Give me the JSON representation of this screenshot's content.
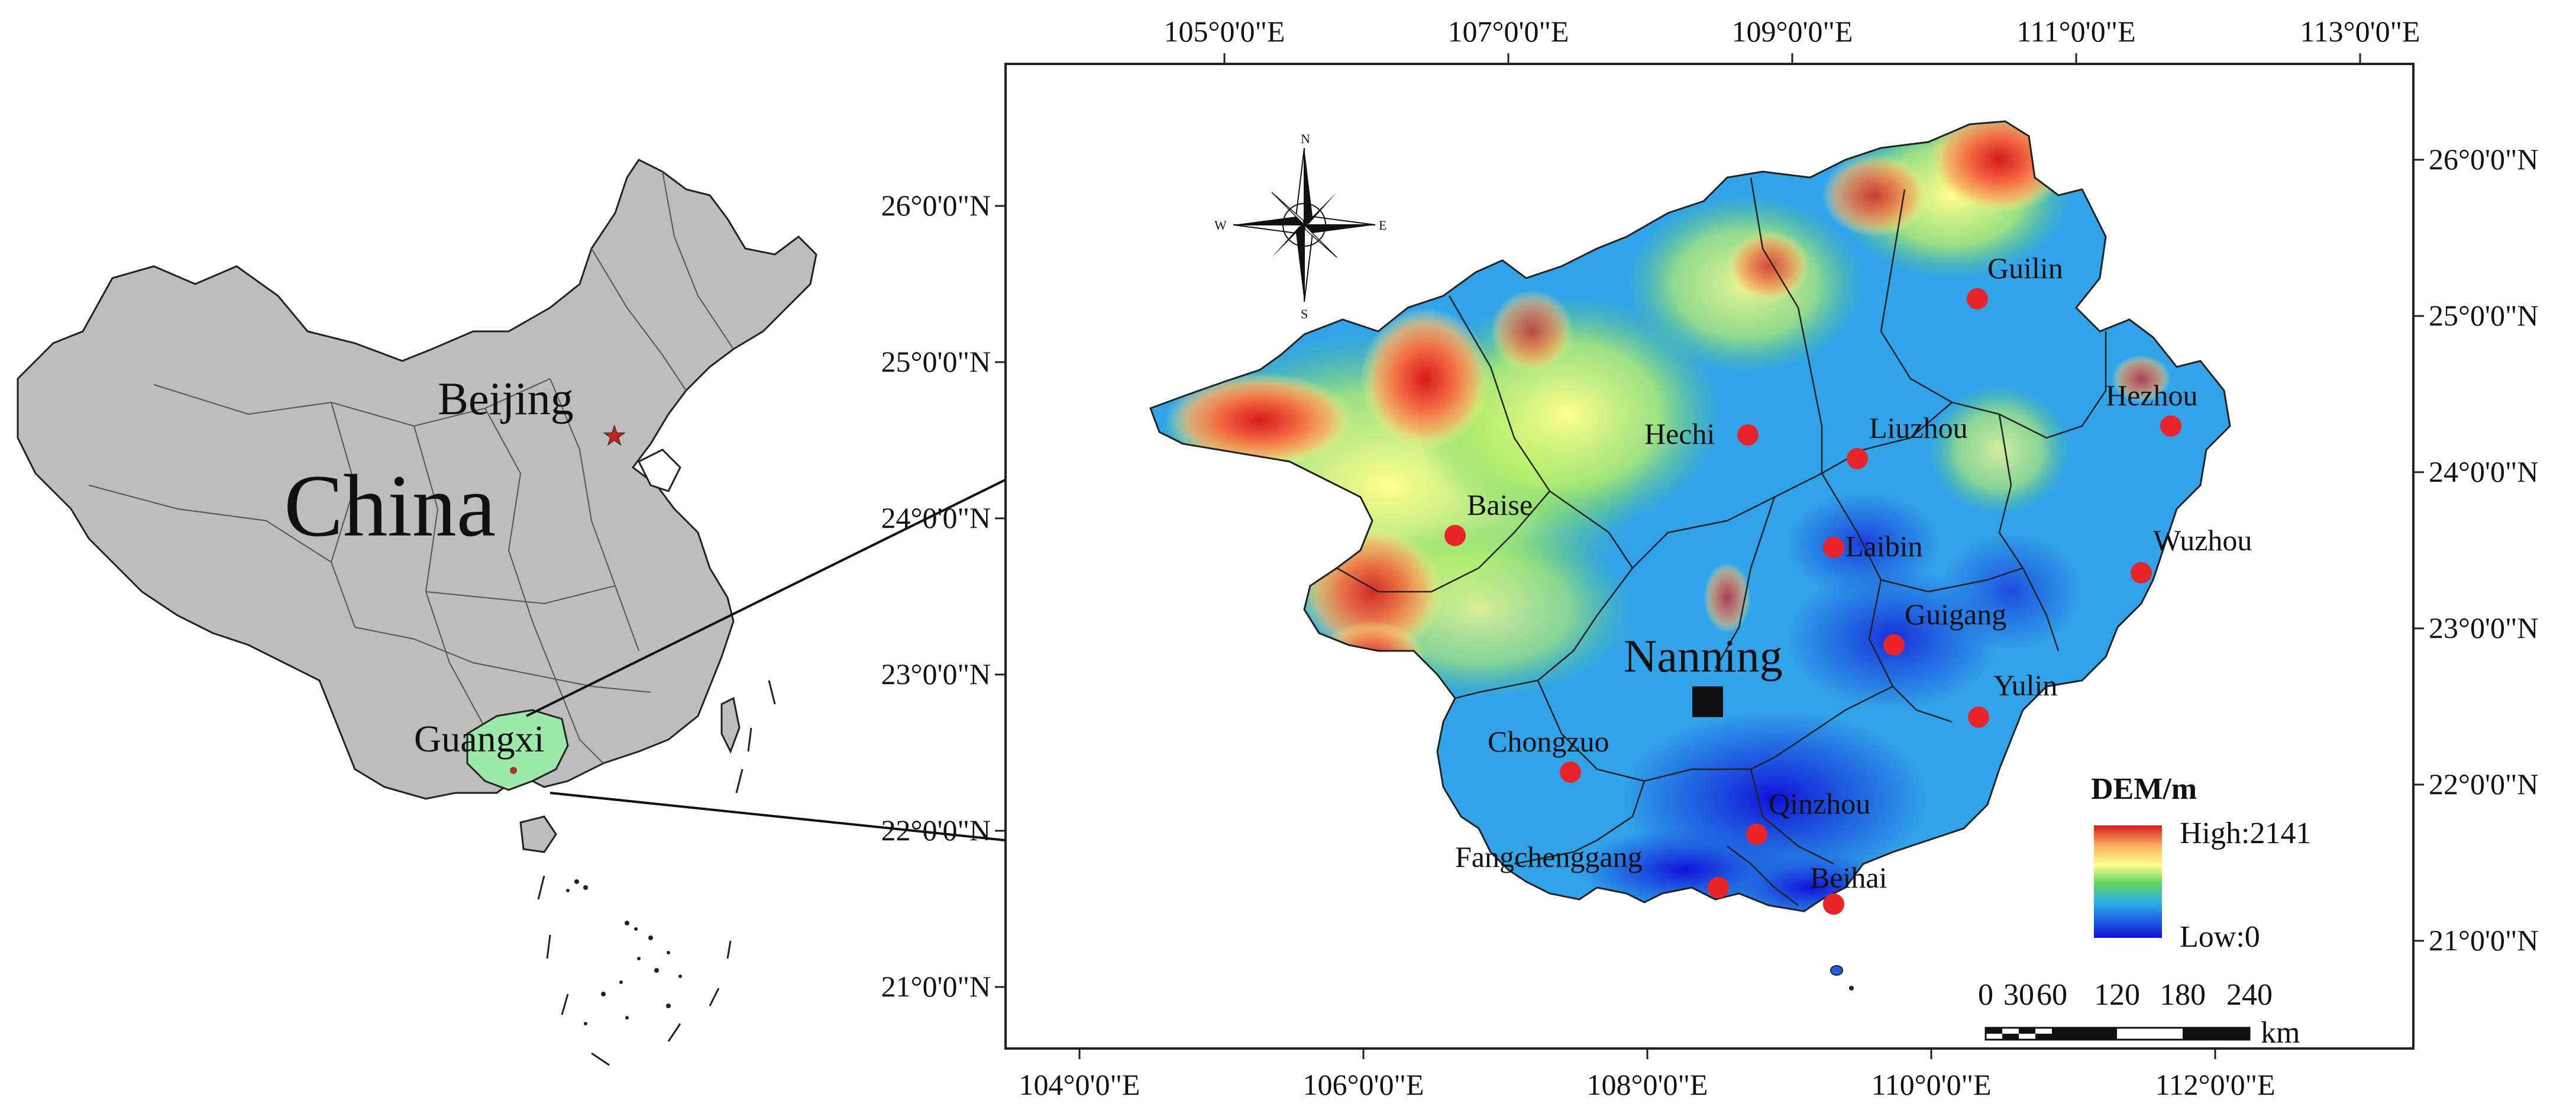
{
  "china_inset": {
    "country_label": "China",
    "capital_label": "Beijing",
    "province_label": "Guangxi",
    "colors": {
      "country_fill": "#bdbdbd",
      "province_fill": "#9be8a8",
      "capital_star": "#cc1f1f"
    }
  },
  "main_map": {
    "top_ticks": [
      "105°0'0\"E",
      "107°0'0\"E",
      "109°0'0\"E",
      "111°0'0\"E",
      "113°0'0\"E"
    ],
    "bottom_ticks": [
      "104°0'0\"E",
      "106°0'0\"E",
      "108°0'0\"E",
      "110°0'0\"E",
      "112°0'0\"E"
    ],
    "left_ticks": [
      "26°0'0\"N",
      "25°0'0\"N",
      "24°0'0\"N",
      "23°0'0\"N",
      "22°0'0\"N",
      "21°0'0\"N"
    ],
    "right_ticks": [
      "26°0'0\"N",
      "25°0'0\"N",
      "24°0'0\"N",
      "23°0'0\"N",
      "22°0'0\"N",
      "21°0'0\"N"
    ],
    "capital": "Nanning",
    "cities": [
      "Guilin",
      "Hezhou",
      "Hechi",
      "Liuzhou",
      "Baise",
      "Laibin",
      "Wuzhou",
      "Guigang",
      "Yulin",
      "Chongzuo",
      "Qinzhou",
      "Fangchenggang",
      "Beihai"
    ],
    "colors": {
      "city_marker": "#e8242a",
      "capital_marker": "#111111"
    }
  },
  "compass": {
    "n": "N",
    "s": "S",
    "e": "E",
    "w": "W"
  },
  "legend": {
    "title": "DEM/m",
    "high": "High:2141",
    "low": "Low:0",
    "colors": [
      "#d7191c",
      "#fdae61",
      "#ffff8c",
      "#5fd35f",
      "#2bb3e8",
      "#1e5de0",
      "#1010d8"
    ]
  },
  "scale_bar": {
    "labels": [
      "0",
      "30",
      "60",
      "120",
      "180",
      "240"
    ],
    "unit": "km"
  }
}
